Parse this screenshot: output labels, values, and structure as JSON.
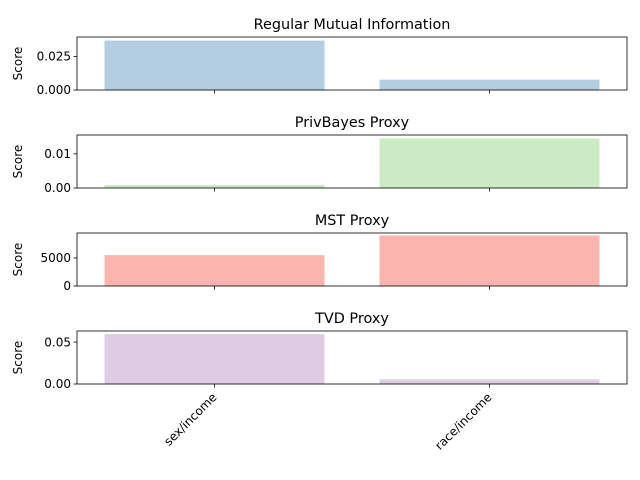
{
  "chart_data": {
    "type": "bar",
    "ylabel": "Score",
    "categories": [
      "sex/income",
      "race/income"
    ],
    "panels": [
      {
        "title": "Regular Mutual Information",
        "values": [
          0.0368,
          0.0077
        ],
        "ylim": [
          0,
          0.0395
        ],
        "yticks": [
          0,
          0.025
        ],
        "ytick_labels": [
          "0.000",
          "0.025"
        ],
        "color": "#b3cde3"
      },
      {
        "title": "PrivBayes Proxy",
        "values": [
          0.0009,
          0.0145
        ],
        "ylim": [
          0,
          0.0155
        ],
        "yticks": [
          0,
          0.01
        ],
        "ytick_labels": [
          "0.00",
          "0.01"
        ],
        "color": "#ccebc5"
      },
      {
        "title": "MST Proxy",
        "values": [
          5500,
          9000
        ],
        "ylim": [
          0,
          9450
        ],
        "yticks": [
          0,
          5000
        ],
        "ytick_labels": [
          "0",
          "5000"
        ],
        "color": "#fbb4ae"
      },
      {
        "title": "TVD Proxy",
        "values": [
          0.0595,
          0.0055
        ],
        "ylim": [
          0,
          0.0632
        ],
        "yticks": [
          0,
          0.05
        ],
        "ytick_labels": [
          "0.00",
          "0.05"
        ],
        "color": "#decbe4"
      }
    ]
  }
}
